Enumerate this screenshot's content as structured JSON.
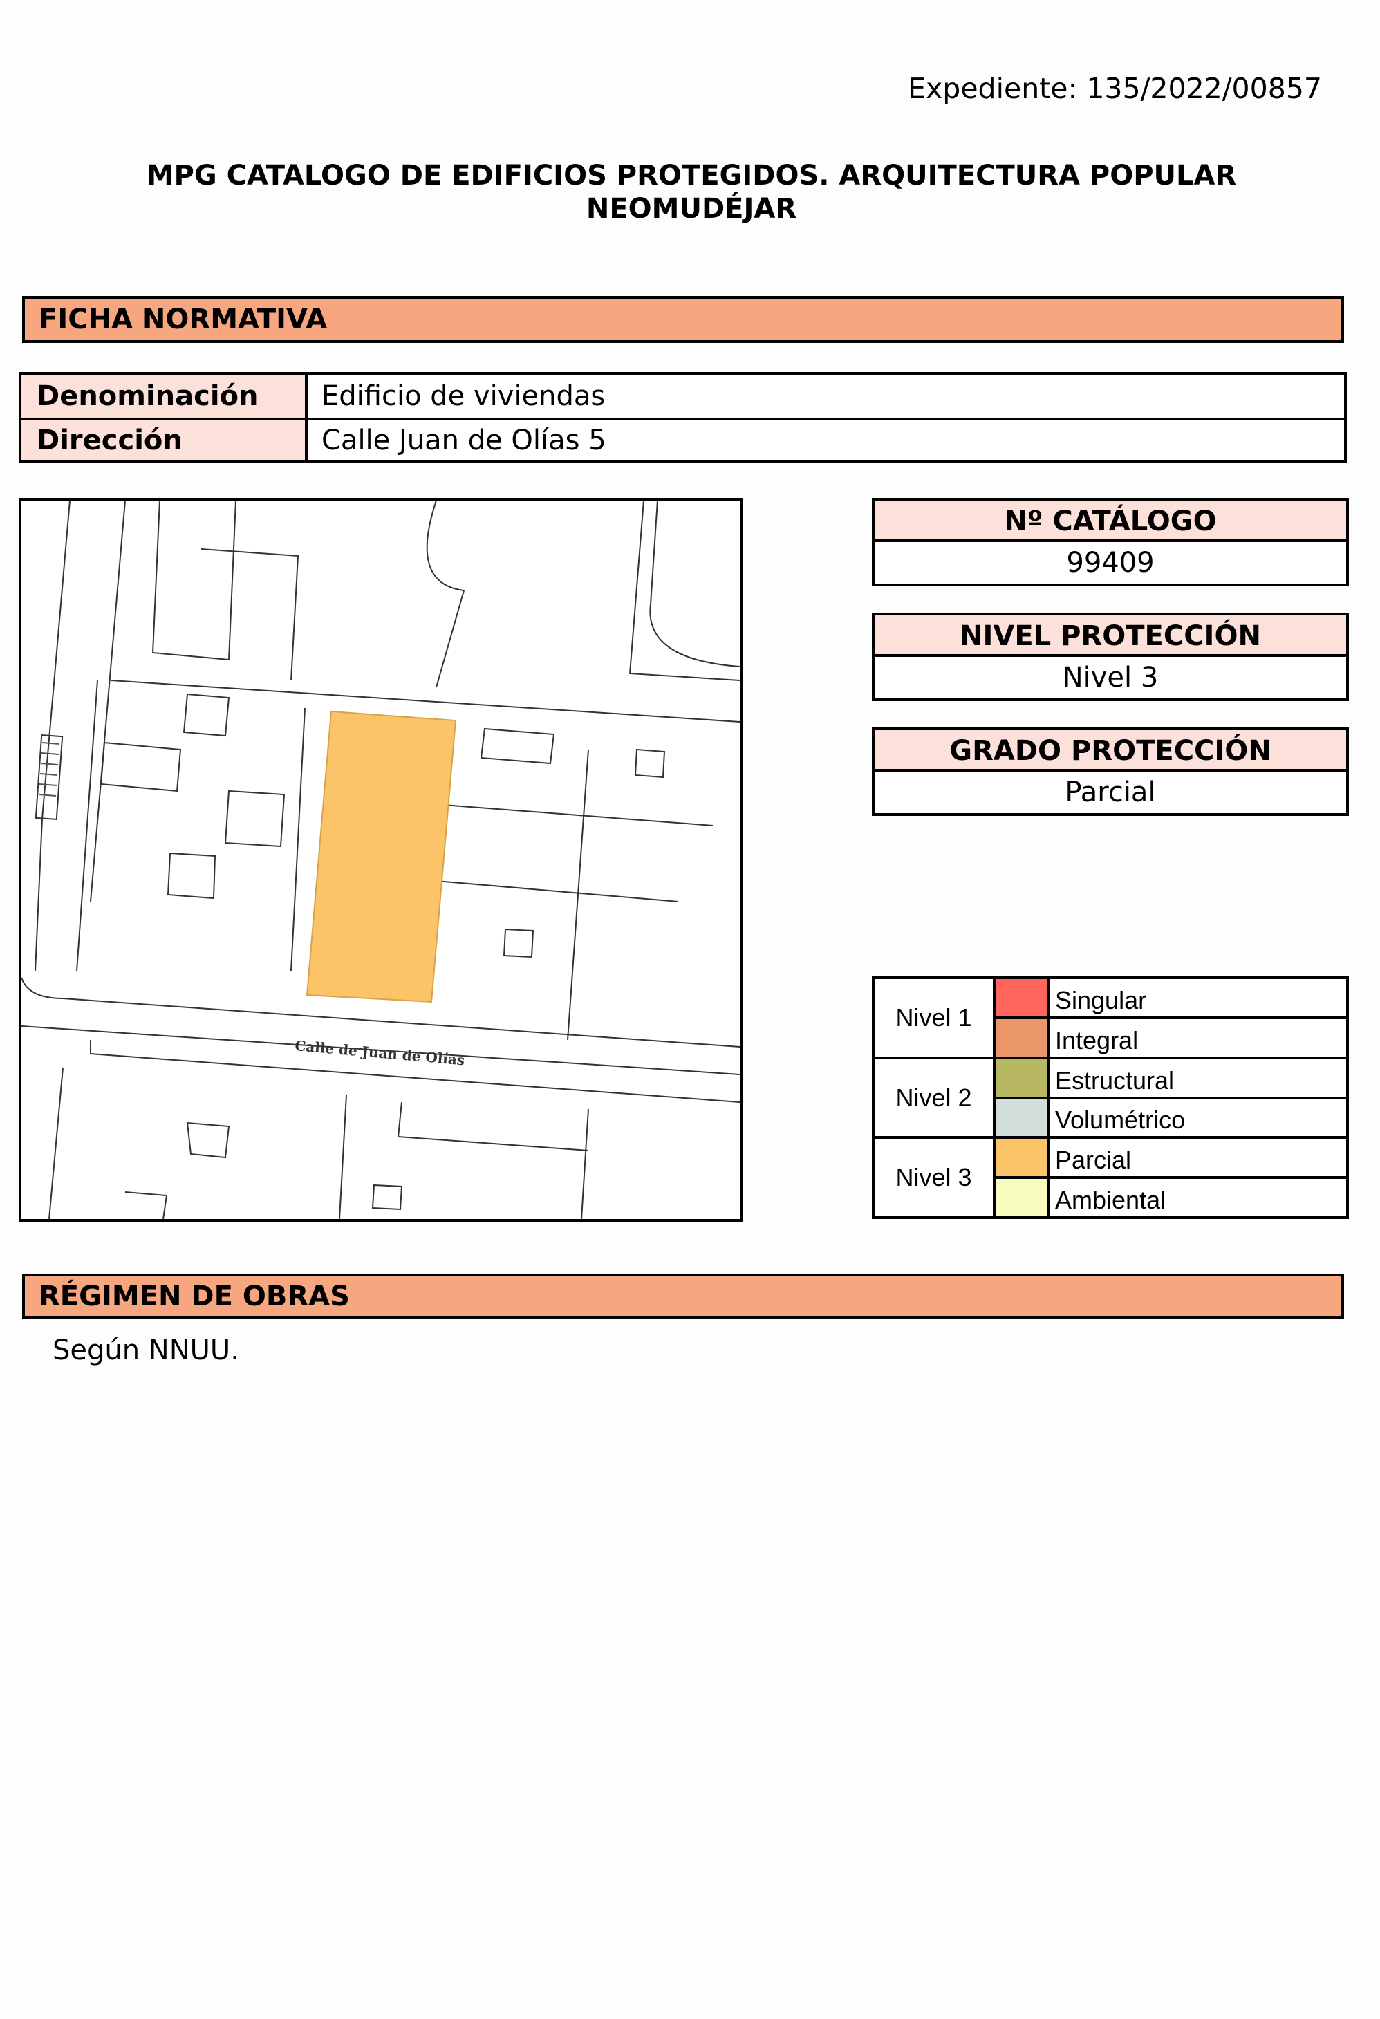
{
  "header": {
    "expediente": "Expediente: 135/2022/00857",
    "title_line1": "MPG CATALOGO DE EDIFICIOS PROTEGIDOS. ARQUITECTURA POPULAR",
    "title_line2": "NEOMUDÉJAR"
  },
  "ficha": {
    "title": "FICHA NORMATIVA",
    "rows": [
      {
        "label": "Denominación",
        "value": "Edificio de viviendas"
      },
      {
        "label": "Dirección",
        "value": "Calle Juan de Olías  5"
      }
    ]
  },
  "map": {
    "street_label": "Calle de Juan de Olías",
    "highlight_color": "#fcc468"
  },
  "catalogo": {
    "label": "Nº CATÁLOGO",
    "value": "99409"
  },
  "nivel": {
    "label": "NIVEL PROTECCIÓN",
    "value": "Nivel 3"
  },
  "grado": {
    "label": "GRADO PROTECCIÓN",
    "value": "Parcial"
  },
  "legend": [
    {
      "nivel": "Nivel 1",
      "items": [
        {
          "label": "Singular",
          "color": "#ff655c"
        },
        {
          "label": "Integral",
          "color": "#ea9668"
        }
      ]
    },
    {
      "nivel": "Nivel 2",
      "items": [
        {
          "label": "Estructural",
          "color": "#b8b762"
        },
        {
          "label": "Volumétrico",
          "color": "#d3dddc"
        }
      ]
    },
    {
      "nivel": "Nivel 3",
      "items": [
        {
          "label": "Parcial",
          "color": "#fcc468"
        },
        {
          "label": "Ambiental",
          "color": "#f8fcc0"
        }
      ]
    }
  ],
  "regimen": {
    "title": "RÉGIMEN DE OBRAS",
    "text": "Según NNUU."
  }
}
